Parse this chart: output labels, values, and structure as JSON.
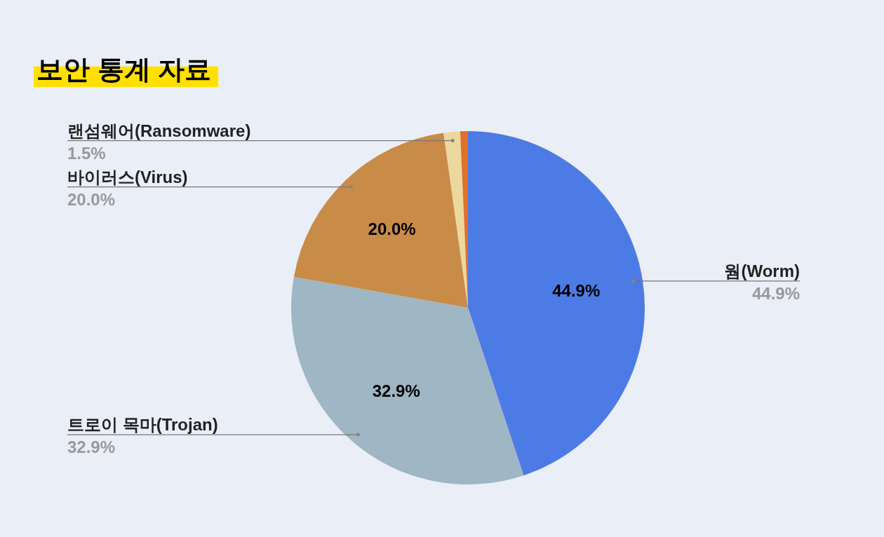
{
  "chart_data": {
    "type": "pie",
    "title": "보안 통계 자료",
    "categories": [
      "웜(Worm)",
      "트로이 목마(Trojan)",
      "바이러스(Virus)",
      "랜섬웨어(Ransomware)",
      null
    ],
    "values": [
      44.9,
      32.9,
      20.0,
      1.5,
      0.7
    ],
    "colors": [
      "#4d7be6",
      "#9fb6c4",
      "#c98b48",
      "#ecd89c",
      "#e0702a"
    ],
    "value_labels": [
      "44.9%",
      "32.9%",
      "20.0%",
      "1.5%",
      null
    ]
  }
}
